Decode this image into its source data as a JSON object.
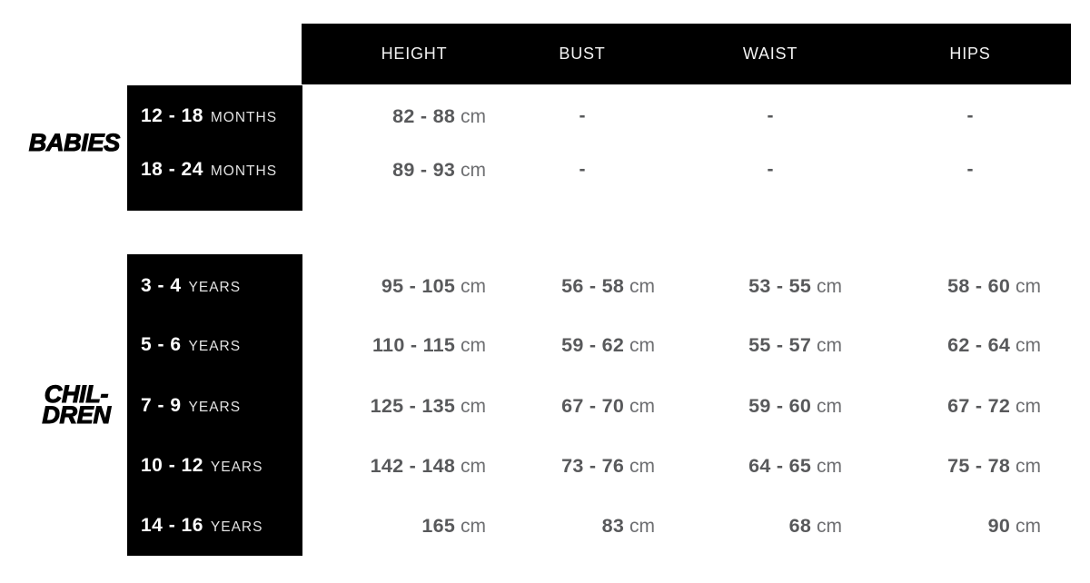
{
  "chart_data": {
    "type": "table",
    "columns": [
      "HEIGHT",
      "BUST",
      "WAIST",
      "HIPS"
    ],
    "unit": "cm",
    "empty_marker": "-",
    "row_groups": [
      {
        "label": "BABIES",
        "label_lines": [
          "BABIES"
        ],
        "rows": [
          {
            "age": "12 - 18",
            "age_unit": "MONTHS",
            "values": [
              "82 - 88",
              "-",
              "-",
              "-"
            ]
          },
          {
            "age": "18 - 24",
            "age_unit": "MONTHS",
            "values": [
              "89 - 93",
              "-",
              "-",
              "-"
            ]
          }
        ]
      },
      {
        "label": "CHILDREN",
        "label_lines": [
          "CHIL-",
          "DREN"
        ],
        "rows": [
          {
            "age": "3 - 4",
            "age_unit": "YEARS",
            "values": [
              "95 - 105",
              "56 - 58",
              "53 - 55",
              "58 - 60"
            ]
          },
          {
            "age": "5 - 6",
            "age_unit": "YEARS",
            "values": [
              "110 - 115",
              "59 - 62",
              "55 - 57",
              "62 - 64"
            ]
          },
          {
            "age": "7 - 9",
            "age_unit": "YEARS",
            "values": [
              "125 - 135",
              "67 - 70",
              "59 - 60",
              "67 - 72"
            ]
          },
          {
            "age": "10 - 12",
            "age_unit": "YEARS",
            "values": [
              "142 - 148",
              "73 - 76",
              "64 - 65",
              "75 - 78"
            ]
          },
          {
            "age": "14 - 16",
            "age_unit": "YEARS",
            "values": [
              "165",
              "83",
              "68",
              "90"
            ]
          }
        ]
      }
    ]
  },
  "palette": {
    "block_background": "#000000",
    "header_text": "#f2f2f2",
    "age_text": "#ffffff",
    "value_text": "#58595b",
    "unit_text": "#6d6e71"
  }
}
